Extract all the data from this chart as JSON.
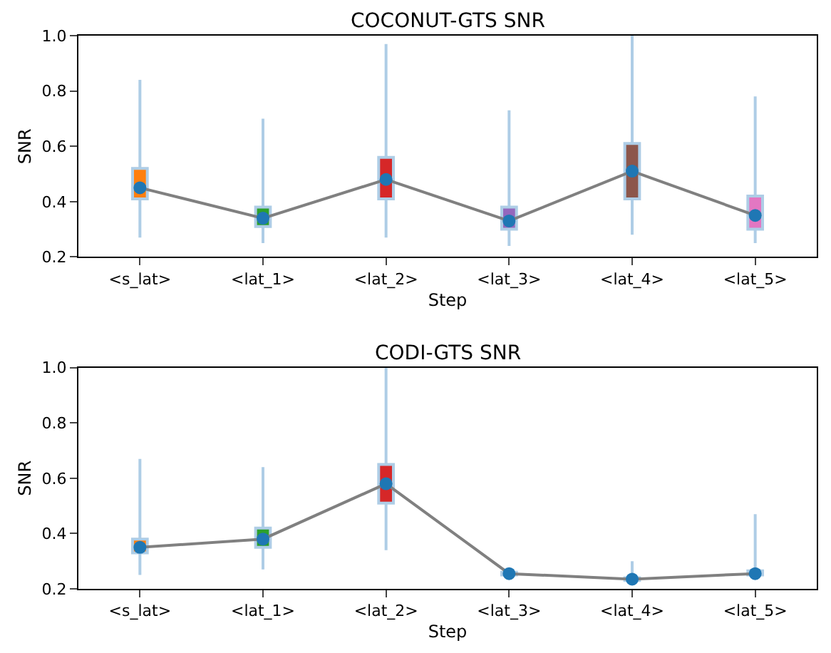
{
  "chart_data": [
    {
      "type": "box",
      "title": "COCONUT-GTS SNR",
      "xlabel": "Step",
      "ylabel": "SNR",
      "categories": [
        "<s_lat>",
        "<lat_1>",
        "<lat_2>",
        "<lat_3>",
        "<lat_4>",
        "<lat_5>"
      ],
      "ylim": [
        0.2,
        1.0
      ],
      "yticks": [
        0.2,
        0.4,
        0.6,
        0.8,
        {
          "value": 1,
          "label": "1.0"
        }
      ],
      "series": [
        {
          "color": "#aecde6",
          "colors": [
            "#ff7f0e",
            "#2ca02c",
            "#d62728",
            "#9467bd",
            "#8c564b",
            "#e377c2"
          ],
          "boxes": [
            {
              "low": 0.27,
              "q1": 0.41,
              "median": 0.45,
              "q3": 0.52,
              "high": 0.84
            },
            {
              "low": 0.25,
              "q1": 0.31,
              "median": 0.34,
              "q3": 0.38,
              "high": 0.7
            },
            {
              "low": 0.27,
              "q1": 0.41,
              "median": 0.48,
              "q3": 0.56,
              "high": 0.97
            },
            {
              "low": 0.24,
              "q1": 0.3,
              "median": 0.33,
              "q3": 0.38,
              "high": 0.73
            },
            {
              "low": 0.28,
              "q1": 0.41,
              "median": 0.51,
              "q3": 0.61,
              "high": 1.0
            },
            {
              "low": 0.25,
              "q1": 0.3,
              "median": 0.35,
              "q3": 0.42,
              "high": 0.78
            }
          ]
        },
        {
          "type": "line",
          "color": "#808080",
          "colors": [
            "#1f77b4",
            "#1f77b4",
            "#1f77b4",
            "#1f77b4",
            "#1f77b4",
            "#1f77b4"
          ],
          "marker": "circle",
          "values": [
            0.45,
            0.34,
            0.48,
            0.33,
            0.51,
            0.35
          ]
        }
      ]
    },
    {
      "type": "box",
      "title": "CODI-GTS SNR",
      "xlabel": "Step",
      "ylabel": "SNR",
      "categories": [
        "<s_lat>",
        "<lat_1>",
        "<lat_2>",
        "<lat_3>",
        "<lat_4>",
        "<lat_5>"
      ],
      "ylim": [
        0.2,
        1.0
      ],
      "yticks": [
        0.2,
        0.4,
        0.6,
        0.8,
        {
          "value": 1,
          "label": "1.0"
        }
      ],
      "series": [
        {
          "color": "#aecde6",
          "colors": [
            "#ff7f0e",
            "#2ca02c",
            "#d62728",
            "#9467bd",
            "#8c564b",
            "#e377c2"
          ],
          "boxes": [
            {
              "low": 0.25,
              "q1": 0.33,
              "median": 0.35,
              "q3": 0.38,
              "high": 0.67
            },
            {
              "low": 0.27,
              "q1": 0.35,
              "median": 0.38,
              "q3": 0.42,
              "high": 0.64
            },
            {
              "low": 0.34,
              "q1": 0.51,
              "median": 0.58,
              "q3": 0.65,
              "high": 1.0
            },
            {
              "low": 0.245,
              "q1": 0.25,
              "median": 0.255,
              "q3": 0.26,
              "high": 0.265
            },
            {
              "low": 0.22,
              "q1": 0.23,
              "median": 0.235,
              "q3": 0.24,
              "high": 0.3
            },
            {
              "low": 0.24,
              "q1": 0.25,
              "median": 0.255,
              "q3": 0.265,
              "high": 0.47
            }
          ]
        },
        {
          "type": "line",
          "color": "#808080",
          "colors": [
            "#1f77b4",
            "#1f77b4",
            "#1f77b4",
            "#1f77b4",
            "#1f77b4",
            "#1f77b4"
          ],
          "marker": "circle",
          "values": [
            0.35,
            0.38,
            0.58,
            0.255,
            0.235,
            0.255
          ]
        }
      ]
    }
  ]
}
